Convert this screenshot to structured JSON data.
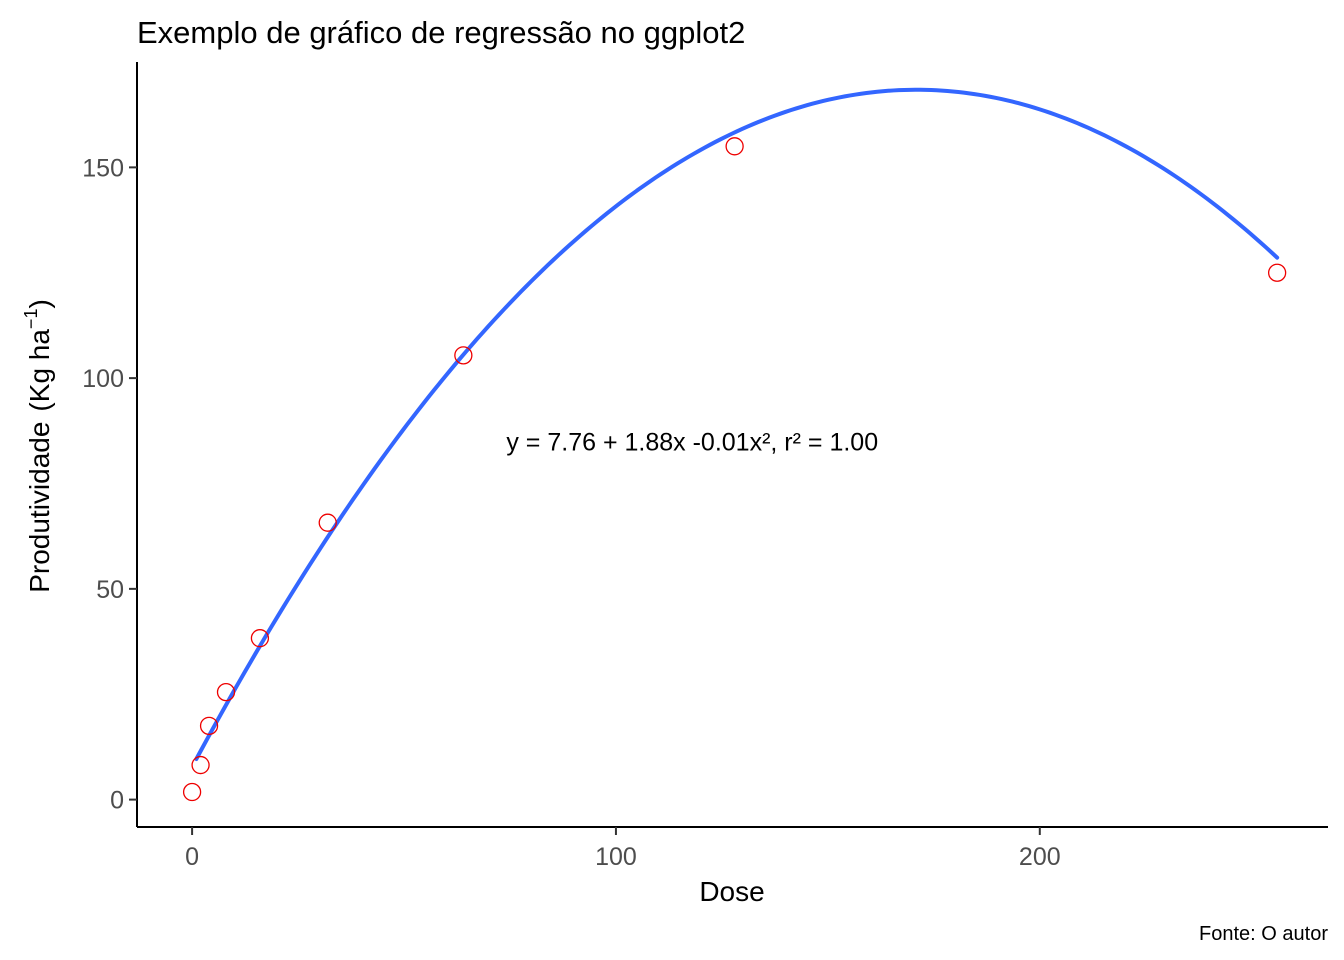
{
  "chart_data": {
    "type": "scatter",
    "title": "Exemplo de gráfico de regressão no ggplot2",
    "xlabel": "Dose",
    "ylabel": "Produtividade",
    "ylabel_unit": "Kg ha",
    "ylabel_unit_exponent": "−1",
    "caption": "Fonte: O autor",
    "xlim": [
      -13,
      268
    ],
    "ylim": [
      -6.5,
      175
    ],
    "x_ticks": [
      0,
      100,
      200
    ],
    "y_ticks": [
      0,
      50,
      100,
      150
    ],
    "grid": false,
    "legend": "none",
    "points": {
      "x": [
        0,
        2,
        4,
        8,
        16,
        32,
        64,
        128,
        256
      ],
      "y": [
        1.8,
        8.2,
        17.5,
        25.5,
        38.3,
        65.7,
        105.4,
        155.0,
        125.0
      ],
      "shape": "open-circle",
      "color": "#ee0000"
    },
    "fit": {
      "model": "quadratic",
      "coefficients": {
        "a": 7.76,
        "b": 1.88,
        "c": -0.0055
      },
      "x_range": [
        1,
        256
      ],
      "color": "#3366ff"
    },
    "annotation": {
      "text": "y = 7.76 + 1.88x -0.01x², r² = 1.00",
      "x": 118,
      "y": 85
    }
  }
}
